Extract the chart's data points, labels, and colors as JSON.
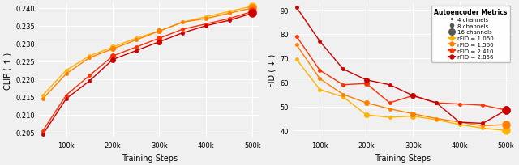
{
  "training_steps": [
    50000,
    100000,
    150000,
    200000,
    250000,
    300000,
    350000,
    400000,
    450000,
    500000
  ],
  "clip_series": [
    {
      "label": "rFID = 1.060",
      "color": "#FFB300",
      "values": [
        0.2155,
        0.2225,
        0.2265,
        0.229,
        0.2315,
        0.2335,
        0.236,
        0.2375,
        0.239,
        0.2405
      ]
    },
    {
      "label": "rFID = 1.560",
      "color": "#FF8000",
      "values": [
        0.2145,
        0.2215,
        0.226,
        0.2285,
        0.231,
        0.2335,
        0.236,
        0.237,
        0.2385,
        0.24
      ]
    },
    {
      "label": "rFID = 2.410",
      "color": "#FF3000",
      "values": [
        0.2055,
        0.2155,
        0.221,
        0.2265,
        0.229,
        0.2315,
        0.234,
        0.2355,
        0.237,
        0.239
      ]
    },
    {
      "label": "rFID = 2.856",
      "color": "#CC0000",
      "values": [
        0.2045,
        0.2145,
        0.2195,
        0.2255,
        0.228,
        0.2305,
        0.233,
        0.235,
        0.2365,
        0.2385
      ]
    }
  ],
  "fid_series": [
    {
      "label": "rFID = 1.060",
      "color": "#FFB300",
      "values": [
        69.5,
        57.0,
        54.0,
        46.5,
        45.5,
        46.0,
        44.5,
        42.5,
        41.0,
        40.0
      ]
    },
    {
      "label": "rFID = 1.560",
      "color": "#FF8000",
      "values": [
        75.5,
        61.5,
        55.0,
        51.5,
        49.0,
        47.0,
        45.0,
        43.5,
        42.0,
        42.5
      ]
    },
    {
      "label": "rFID = 2.410",
      "color": "#FF3000",
      "values": [
        79.0,
        65.0,
        59.0,
        59.5,
        51.5,
        54.5,
        51.5,
        51.0,
        50.5,
        48.5
      ]
    },
    {
      "label": "rFID = 2.856",
      "color": "#CC0000",
      "values": [
        91.0,
        77.0,
        65.5,
        61.0,
        59.0,
        54.5,
        51.5,
        43.5,
        43.0,
        48.5
      ]
    }
  ],
  "channel_marker_sizes": [
    2.5,
    4.0,
    6.5
  ],
  "channel_labels": [
    "4 channels",
    "8 channels",
    "16 channels"
  ],
  "clip_ylim": [
    0.2035,
    0.2415
  ],
  "clip_yticks": [
    0.205,
    0.21,
    0.215,
    0.22,
    0.225,
    0.23,
    0.235,
    0.24
  ],
  "fid_ylim": [
    37,
    93
  ],
  "fid_yticks": [
    40,
    50,
    60,
    70,
    80,
    90
  ],
  "xlabel": "Training Steps",
  "clip_ylabel": "CLIP ( ↑ )",
  "fid_ylabel": "FID ( ↓ )",
  "legend_title": "Autoencoder Metrics",
  "background_color": "#f0f0f0",
  "grid_color": "#ffffff",
  "linewidth": 1.0
}
